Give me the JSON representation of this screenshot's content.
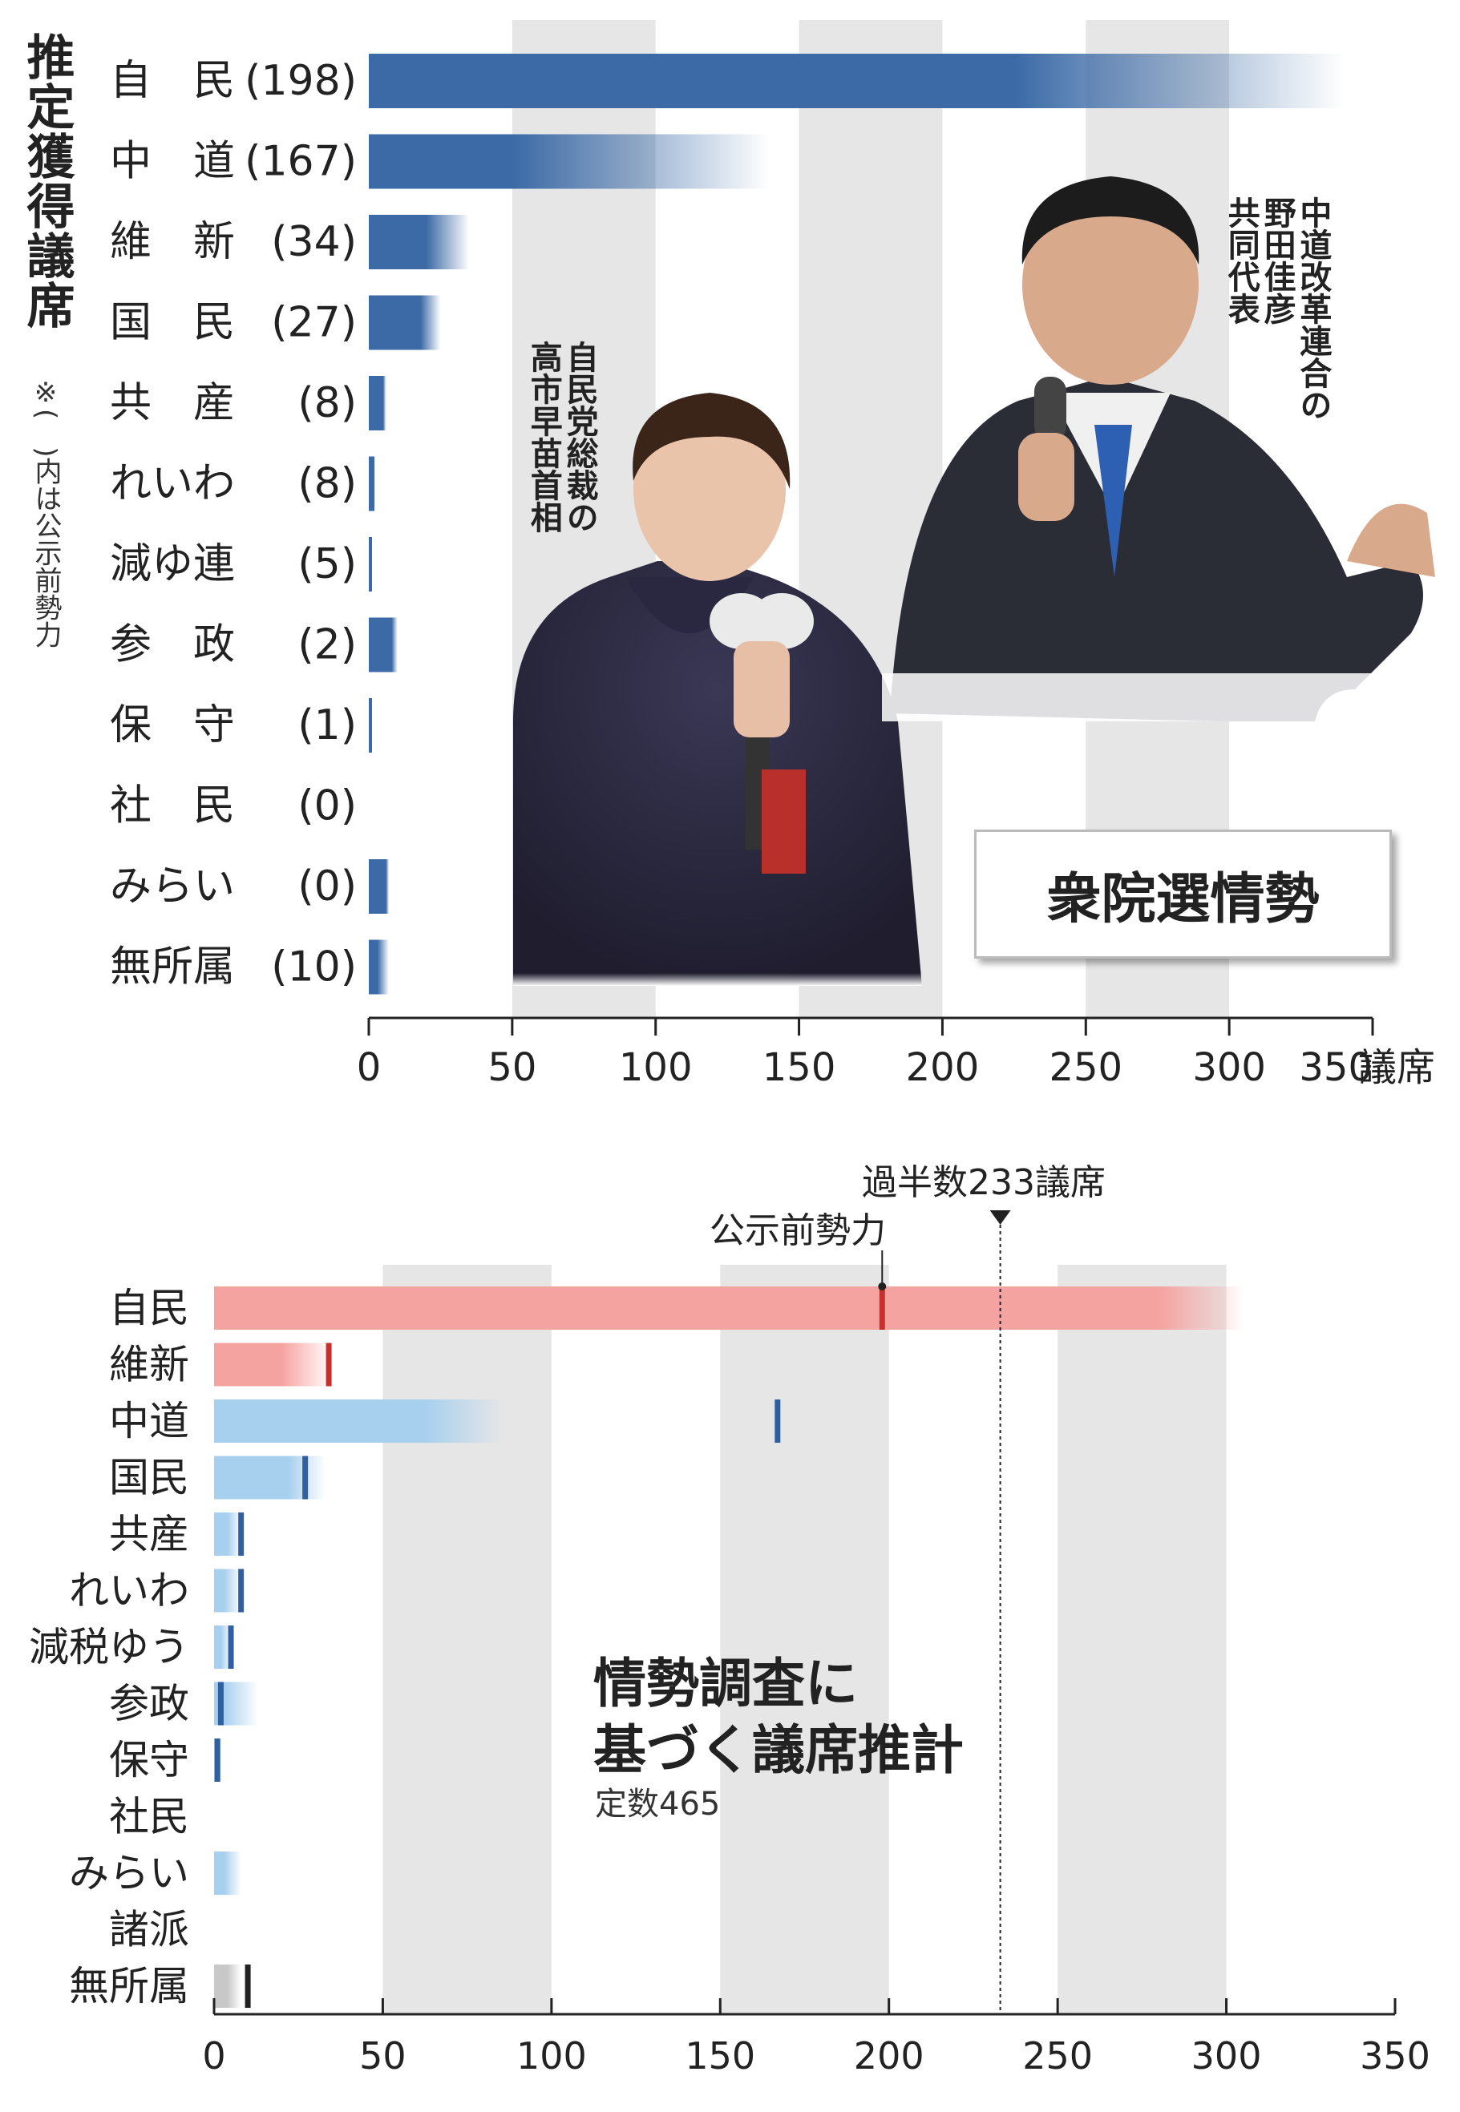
{
  "top": {
    "title": "推定獲得議席",
    "note": "※(　)内は公示前勢力",
    "unit": "議席",
    "x_ticks": [
      "0",
      "50",
      "100",
      "150",
      "200",
      "250",
      "300",
      "350"
    ],
    "caption_right": [
      "中道改革連合の",
      "野田佳彦",
      "共同代表"
    ],
    "caption_left": [
      "自民党総裁の",
      "高市早苗首相"
    ],
    "box_label": "衆院選情勢"
  },
  "bottom": {
    "majority_label": "過半数233議席",
    "prior_label": "公示前勢力",
    "title_line1": "情勢調査に",
    "title_line2": "基づく議席推計",
    "subtitle": "定数465",
    "x_ticks": [
      "0",
      "50",
      "100",
      "150",
      "200",
      "250",
      "300",
      "350"
    ]
  },
  "colors": {
    "top_bar": "#3b6aa6",
    "band": "#e6e6e6",
    "pink": "#f5a3a0",
    "red_marker": "#c9302c",
    "light_blue": "#a7cfee",
    "blue_marker": "#2f5f9e",
    "gray": "#c8c8c8",
    "black_marker": "#222222"
  },
  "chart_data": [
    {
      "type": "bar",
      "orientation": "horizontal",
      "xlim": [
        0,
        350
      ],
      "xlabel": "議席",
      "bands": [
        [
          50,
          100
        ],
        [
          150,
          200
        ],
        [
          250,
          300
        ]
      ],
      "categories": [
        "自　民",
        "中　道",
        "維　新",
        "国　民",
        "共　産",
        "れいわ",
        "減ゆ連",
        "参　政",
        "保　守",
        "社　民",
        "みらい",
        "無所属"
      ],
      "prior": [
        "(198)",
        "(167)",
        "(34)",
        "(27)",
        "(8)",
        "(8)",
        "(5)",
        "(2)",
        "(1)",
        "(0)",
        "(0)",
        "(10)"
      ],
      "ranges": [
        [
          225,
          340
        ],
        [
          50,
          140
        ],
        [
          20,
          35
        ],
        [
          18,
          25
        ],
        [
          5,
          6
        ],
        [
          2,
          2
        ],
        [
          1,
          1
        ],
        [
          8,
          10
        ],
        [
          1,
          1
        ],
        [
          0,
          0
        ],
        [
          6,
          7
        ],
        [
          3,
          7
        ]
      ]
    },
    {
      "type": "bar",
      "orientation": "horizontal",
      "xlim": [
        0,
        350
      ],
      "majority": 233,
      "bands": [
        [
          50,
          100
        ],
        [
          150,
          200
        ],
        [
          250,
          300
        ]
      ],
      "categories": [
        "自民",
        "維新",
        "中道",
        "国民",
        "共産",
        "れいわ",
        "減税ゆう",
        "参政",
        "保守",
        "社民",
        "みらい",
        "諸派",
        "無所属"
      ],
      "ranges": [
        [
          280,
          305
        ],
        [
          20,
          35
        ],
        [
          62,
          86
        ],
        [
          22,
          33
        ],
        [
          4,
          8
        ],
        [
          3,
          8
        ],
        [
          2,
          5
        ],
        [
          3,
          13
        ],
        [
          1,
          1
        ],
        [
          0,
          0
        ],
        [
          3,
          8
        ],
        [
          0,
          0
        ],
        [
          4,
          8
        ]
      ],
      "prior": [
        198,
        34,
        167,
        27,
        8,
        8,
        5,
        2,
        1,
        0,
        0,
        0,
        10
      ],
      "colors": [
        "pink",
        "pink",
        "light_blue",
        "light_blue",
        "light_blue",
        "light_blue",
        "light_blue",
        "light_blue",
        "light_blue",
        "light_blue",
        "light_blue",
        "light_blue",
        "gray"
      ]
    }
  ]
}
